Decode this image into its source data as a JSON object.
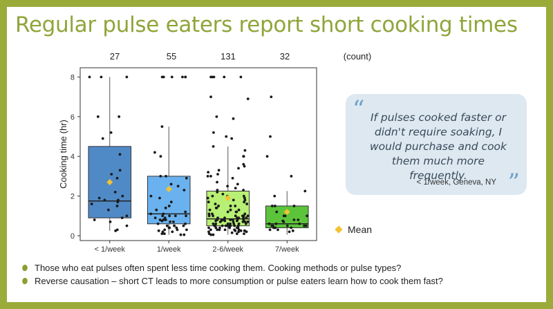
{
  "slide": {
    "title": "Regular pulse eaters report short cooking times"
  },
  "counts": {
    "values": [
      "27",
      "55",
      "131",
      "32"
    ],
    "unit_label": "(count)"
  },
  "quote": {
    "text": "If pulses cooked faster or didn't require soaking, I would purchase and cook them much more frequently.",
    "source": "< 1/week, Geneva, NY"
  },
  "legend": {
    "mean_label": "Mean"
  },
  "bullets": [
    "Those who eat pulses often spent less time cooking them.  Cooking methods or pulse types?",
    "Reverse causation – short CT leads to more consumption or pulse eaters learn how to cook them fast?"
  ],
  "colors": {
    "accent": "#9aab3a",
    "box_1": "#4f8ac6",
    "box_2": "#6ab2ef",
    "box_3": "#b7f074",
    "box_4": "#5cc43b",
    "mean": "#f3c233",
    "quote_bg": "#dde8f1"
  },
  "chart_data": {
    "type": "box",
    "ylabel": "Cooking time (hr)",
    "ylim": [
      0,
      8.2
    ],
    "yticks": [
      0,
      2,
      4,
      6,
      8
    ],
    "grid": false,
    "categories": [
      "< 1/week",
      "1/week",
      "2-6/week",
      "7/week"
    ],
    "boxes": [
      {
        "q1": 0.9,
        "median": 1.75,
        "q3": 4.5,
        "whisker_low": 0.25,
        "whisker_high": 8.0,
        "mean": 2.7
      },
      {
        "q1": 0.6,
        "median": 1.1,
        "q3": 3.0,
        "whisker_low": 0.05,
        "whisker_high": 5.5,
        "mean": 2.35
      },
      {
        "q1": 0.5,
        "median": 0.85,
        "q3": 2.25,
        "whisker_low": 0.05,
        "whisker_high": 4.5,
        "mean": 1.9
      },
      {
        "q1": 0.4,
        "median": 0.6,
        "q3": 1.5,
        "whisker_low": 0.05,
        "whisker_high": 2.25,
        "mean": 1.2
      }
    ],
    "points": [
      [
        8.0,
        8.0,
        8.0,
        6.0,
        6.0,
        5.2,
        4.9,
        4.1,
        3.3,
        3.1,
        2.9,
        2.2,
        2.0,
        1.9,
        1.8,
        1.8,
        1.7,
        1.6,
        1.5,
        1.3,
        1.0,
        0.9,
        0.8,
        0.7,
        0.5,
        0.3,
        0.25
      ],
      [
        8.0,
        8.0,
        8.0,
        8.0,
        8.0,
        8.0,
        5.5,
        4.2,
        4.0,
        3.0,
        3.0,
        2.9,
        2.6,
        2.5,
        2.3,
        2.0,
        1.9,
        1.7,
        1.5,
        1.4,
        1.3,
        1.2,
        1.1,
        1.1,
        1.0,
        1.0,
        1.0,
        1.0,
        0.9,
        0.9,
        0.8,
        0.8,
        0.8,
        0.75,
        0.7,
        0.7,
        0.6,
        0.6,
        0.5,
        0.5,
        0.5,
        0.5,
        0.4,
        0.4,
        0.4,
        0.3,
        0.3,
        0.3,
        0.25,
        0.2,
        0.2,
        0.1,
        0.1,
        0.05,
        0.05
      ],
      [
        8.0,
        8.0,
        8.0,
        8.0,
        8.0,
        7.0,
        6.9,
        6.0,
        5.9,
        5.2,
        5.0,
        4.9,
        4.5,
        4.3,
        4.0,
        4.0,
        3.6,
        3.5,
        3.4,
        3.3,
        3.2,
        3.1,
        3.0,
        3.0,
        2.9,
        2.7,
        2.6,
        2.5,
        2.4,
        2.3,
        2.3,
        2.2,
        2.1,
        2.0,
        2.0,
        2.0,
        1.9,
        1.9,
        1.8,
        1.8,
        1.7,
        1.7,
        1.6,
        1.6,
        1.5,
        1.5,
        1.5,
        1.4,
        1.4,
        1.3,
        1.3,
        1.3,
        1.2,
        1.2,
        1.2,
        1.1,
        1.1,
        1.1,
        1.0,
        1.0,
        1.0,
        1.0,
        1.0,
        1.0,
        1.0,
        0.9,
        0.9,
        0.9,
        0.9,
        0.9,
        0.9,
        0.8,
        0.8,
        0.8,
        0.8,
        0.8,
        0.8,
        0.8,
        0.8,
        0.75,
        0.75,
        0.75,
        0.75,
        0.7,
        0.7,
        0.7,
        0.7,
        0.7,
        0.7,
        0.6,
        0.6,
        0.6,
        0.6,
        0.6,
        0.6,
        0.6,
        0.5,
        0.5,
        0.5,
        0.5,
        0.5,
        0.5,
        0.5,
        0.5,
        0.5,
        0.5,
        0.4,
        0.4,
        0.4,
        0.4,
        0.4,
        0.4,
        0.3,
        0.3,
        0.3,
        0.3,
        0.3,
        0.3,
        0.25,
        0.25,
        0.25,
        0.25,
        0.2,
        0.2,
        0.2,
        0.15,
        0.1,
        0.1,
        0.1,
        0.05,
        0.05
      ],
      [
        7.0,
        5.0,
        4.0,
        3.0,
        2.25,
        2.0,
        1.5,
        1.5,
        1.5,
        1.2,
        1.0,
        1.0,
        1.0,
        0.8,
        0.8,
        0.75,
        0.7,
        0.6,
        0.6,
        0.6,
        0.5,
        0.5,
        0.5,
        0.5,
        0.5,
        0.4,
        0.4,
        0.4,
        0.3,
        0.3,
        0.25,
        0.2
      ]
    ]
  }
}
